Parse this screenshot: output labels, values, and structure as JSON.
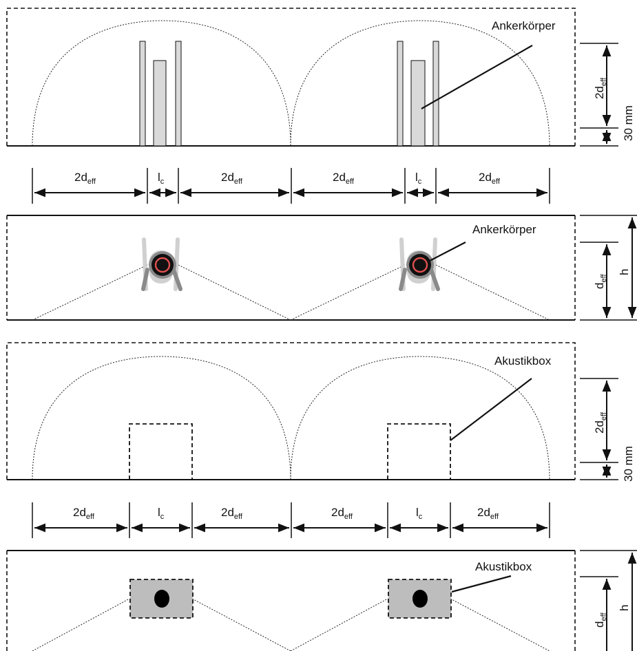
{
  "labels": {
    "anchor_body": "Ankerkörper",
    "acoustic_box": "Akustikbox",
    "two_d": "2d",
    "d": "d",
    "eff": "eff",
    "l": "l",
    "c": "c",
    "h": "h",
    "thirty_mm": "30 mm"
  },
  "colors": {
    "line": "#111111",
    "anchor_fill": "#d9d9d9",
    "anchor_ring": "#e05050",
    "box_fill": "#bdbdbd",
    "clip_grey": "#8a8a8a"
  }
}
